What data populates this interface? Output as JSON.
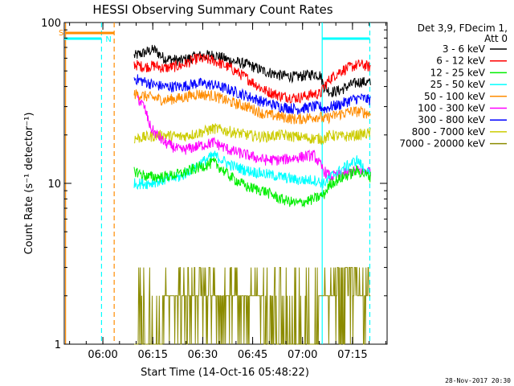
{
  "chart_data": {
    "type": "line",
    "title": "HESSI Observing Summary Count Rates",
    "xlabel": "Start Time (14-Oct-16 05:48:22)",
    "ylabel": "Count Rate (s⁻¹ detector⁻¹)",
    "footer_date": "28-Nov-2017 20:30",
    "y_scale": "log",
    "ylim": [
      1,
      100
    ],
    "y_ticks": [
      {
        "value": 1,
        "label": "1"
      },
      {
        "value": 10,
        "label": "10"
      },
      {
        "value": 100,
        "label": "100"
      }
    ],
    "x_unit": "minutes since 05:48:22",
    "xlim": [
      0,
      97
    ],
    "x_ticks": [
      {
        "value": 11.6,
        "label": "06:00"
      },
      {
        "value": 26.6,
        "label": "06:15"
      },
      {
        "value": 41.6,
        "label": "06:30"
      },
      {
        "value": 56.6,
        "label": "06:45"
      },
      {
        "value": 71.6,
        "label": "07:00"
      },
      {
        "value": 86.6,
        "label": "07:15"
      }
    ],
    "legend": {
      "placement": "right",
      "header": [
        "Det 3,9, FDecim 1,",
        "Att 0"
      ],
      "entries": [
        {
          "label": "3 - 6 keV",
          "color": "#000000"
        },
        {
          "label": "6 - 12 keV",
          "color": "#ff0000"
        },
        {
          "label": "12 - 25 keV",
          "color": "#00ee00"
        },
        {
          "label": "25 - 50 keV",
          "color": "#00ffff"
        },
        {
          "label": "50 - 100 keV",
          "color": "#ff8c00"
        },
        {
          "label": "100 - 300 keV",
          "color": "#ff00ff"
        },
        {
          "label": "300 - 800 keV",
          "color": "#0000ff"
        },
        {
          "label": "800 - 7000 keV",
          "color": "#cccc00"
        },
        {
          "label": "7000 - 20000 keV",
          "color": "#8b8b00"
        }
      ]
    },
    "flags": [
      {
        "label": "S",
        "color": "#ff8c00"
      },
      {
        "label": "N",
        "color": "#00ffff"
      }
    ],
    "series": [
      {
        "name": "3 - 6 keV",
        "color": "#000000",
        "x": [
          21,
          24,
          27,
          30,
          35,
          40,
          45,
          50,
          55,
          60,
          65,
          70,
          75,
          77,
          78,
          80,
          83,
          86,
          89,
          92
        ],
        "y": [
          62,
          65,
          68,
          60,
          58,
          62,
          63,
          58,
          55,
          50,
          47,
          46,
          48,
          47,
          40,
          37,
          38,
          41,
          43,
          42
        ]
      },
      {
        "name": "6 - 12 keV",
        "color": "#ff0000",
        "x": [
          21,
          24,
          27,
          30,
          35,
          40,
          45,
          50,
          55,
          60,
          65,
          70,
          75,
          77,
          78,
          80,
          83,
          86,
          89,
          92
        ],
        "y": [
          55,
          53,
          54,
          52,
          54,
          60,
          58,
          52,
          45,
          38,
          35,
          34,
          36,
          36,
          40,
          45,
          50,
          53,
          55,
          53
        ]
      },
      {
        "name": "300 - 800 keV",
        "color": "#0000ff",
        "x": [
          21,
          24,
          27,
          30,
          35,
          40,
          45,
          50,
          55,
          60,
          65,
          70,
          75,
          77,
          78,
          80,
          83,
          86,
          89,
          92
        ],
        "y": [
          45,
          43,
          41,
          40,
          40,
          42,
          41,
          38,
          35,
          32,
          30,
          29,
          30,
          30,
          29,
          30,
          31,
          33,
          34,
          33
        ]
      },
      {
        "name": "50 - 100 keV",
        "color": "#ff8c00",
        "x": [
          21,
          24,
          27,
          30,
          35,
          40,
          45,
          50,
          55,
          60,
          65,
          70,
          75,
          77,
          78,
          80,
          83,
          86,
          89,
          92
        ],
        "y": [
          36,
          35,
          34,
          33,
          34,
          36,
          35,
          32,
          30,
          27,
          26,
          25,
          26,
          26,
          25,
          26,
          27,
          28,
          28,
          27
        ]
      },
      {
        "name": "800 - 7000 keV",
        "color": "#cccc00",
        "x": [
          21,
          25,
          30,
          35,
          40,
          45,
          50,
          55,
          60,
          65,
          70,
          75,
          78,
          80,
          84,
          88,
          92
        ],
        "y": [
          19,
          19.5,
          20,
          19.5,
          20.5,
          22,
          21,
          20,
          19.5,
          20,
          19.5,
          19,
          19,
          20,
          19.5,
          20,
          20.5
        ]
      },
      {
        "name": "100 - 300 keV",
        "color": "#ff00ff",
        "x": [
          22,
          24,
          26,
          30,
          35,
          40,
          45,
          50,
          55,
          60,
          65,
          70,
          75,
          78,
          80,
          84,
          88,
          92
        ],
        "y": [
          34,
          30,
          22,
          18,
          16,
          17,
          18,
          16,
          15,
          14,
          14,
          14.5,
          15,
          12,
          11,
          11.5,
          12,
          12
        ]
      },
      {
        "name": "25 - 50 keV",
        "color": "#00ffff",
        "x": [
          21,
          25,
          30,
          35,
          40,
          45,
          50,
          55,
          60,
          65,
          70,
          75,
          78,
          80,
          84,
          88,
          92
        ],
        "y": [
          10,
          10,
          10.5,
          11,
          13,
          15,
          13,
          12,
          11.5,
          11,
          10.5,
          10.5,
          10,
          11,
          12.5,
          14,
          11
        ]
      },
      {
        "name": "12 - 25 keV",
        "color": "#00ee00",
        "x": [
          21,
          25,
          30,
          35,
          40,
          45,
          50,
          55,
          60,
          65,
          70,
          75,
          78,
          80,
          84,
          88,
          92
        ],
        "y": [
          12,
          11,
          11,
          11.5,
          12.5,
          13.5,
          11,
          9.5,
          9,
          8,
          7.5,
          8,
          8.5,
          10,
          11,
          12,
          11
        ]
      },
      {
        "name": "7000 - 20000 keV",
        "color": "#8b8b00",
        "x": [
          21,
          25,
          30,
          35,
          40,
          45,
          50,
          55,
          60,
          65,
          70,
          75,
          78,
          80,
          84,
          88,
          92
        ],
        "y": [
          1.3,
          1.4,
          1.5,
          1.6,
          2.2,
          2.4,
          2.0,
          1.6,
          1.5,
          1.4,
          1.5,
          1.4,
          1.6,
          2.4,
          2.6,
          2.5,
          2.4
        ]
      }
    ],
    "markers": [
      {
        "type": "vertical",
        "x": 0.4,
        "color": "#ff8c00",
        "style": "solid"
      },
      {
        "type": "vertical",
        "x": 11.2,
        "color": "#00ffff",
        "style": "dashed"
      },
      {
        "type": "vertical",
        "x": 15.0,
        "color": "#ff8c00",
        "style": "dashed"
      },
      {
        "type": "vertical",
        "x": 77.5,
        "color": "#00ffff",
        "style": "solid"
      },
      {
        "type": "vertical",
        "x": 91.8,
        "color": "#00ffff",
        "style": "dashed"
      }
    ]
  }
}
